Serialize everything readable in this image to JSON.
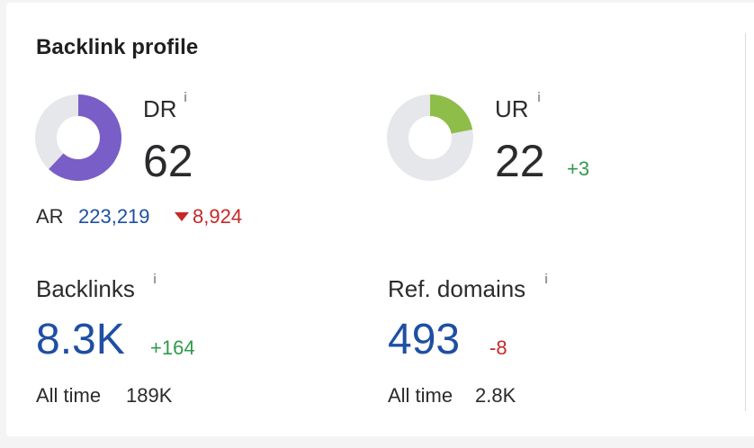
{
  "card": {
    "title": "Backlink profile"
  },
  "dr": {
    "label": "DR",
    "info": "i",
    "value": "62",
    "fill_fraction": 0.62,
    "fill_color": "#7a5ec7",
    "track_color": "#e6e7ea"
  },
  "ur": {
    "label": "UR",
    "info": "i",
    "value": "22",
    "delta": "+3",
    "fill_fraction": 0.22,
    "fill_color": "#8fbd4a",
    "track_color": "#e6e7ea"
  },
  "ar": {
    "label": "AR",
    "value": "223,219",
    "change": "8,924",
    "change_direction": "down"
  },
  "backlinks": {
    "label": "Backlinks",
    "info": "i",
    "value": "8.3K",
    "delta": "+164",
    "all_time_label": "All time",
    "all_time_value": "189K"
  },
  "ref_domains": {
    "label": "Ref. domains",
    "info": "i",
    "value": "493",
    "delta": "-8",
    "all_time_label": "All time",
    "all_time_value": "2.8K"
  },
  "colors": {
    "link_blue": "#1e4fa3",
    "positive_green": "#2f9a4a",
    "negative_red": "#c62828"
  }
}
